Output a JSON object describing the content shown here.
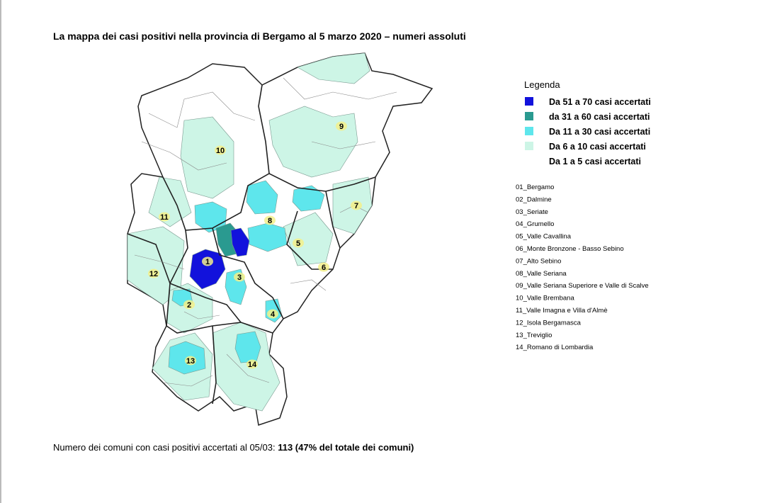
{
  "title": "La mappa dei casi positivi nella provincia di Bergamo al 5 marzo 2020 – numeri assoluti",
  "legend": {
    "title": "Legenda",
    "items": [
      {
        "label": "Da 51 a 70 casi accertati",
        "color": "#1212dc"
      },
      {
        "label": "da 31 a 60 casi accertati",
        "color": "#2a9a90"
      },
      {
        "label": "Da 11 a 30 casi accertati",
        "color": "#5ee6ec"
      },
      {
        "label": "Da 6 a 10 casi accertati",
        "color": "#cdf5e6"
      },
      {
        "label": "Da 1 a 5 casi accertati",
        "color": "#ffffff"
      }
    ]
  },
  "map_labels": [
    "1",
    "2",
    "3",
    "4",
    "5",
    "6",
    "7",
    "8",
    "9",
    "10",
    "11",
    "12",
    "13",
    "14"
  ],
  "districts": [
    "01_Bergamo",
    "02_Dalmine",
    "03_Seriate",
    "04_Grumello",
    "05_Valle Cavallina",
    "06_Monte Bronzone - Basso Sebino",
    "07_Alto Sebino",
    "08_Valle Seriana",
    "09_Valle Seriana Superiore e Valle di Scalve",
    "10_Valle Brembana",
    "11_Valle Imagna e Villa d'Almè",
    "12_Isola Bergamasca",
    "13_Treviglio",
    "14_Romano di Lombardia"
  ],
  "footer": {
    "text": "Numero dei comuni con casi positivi accertati al 05/03:",
    "highlight": "113 (47% del totale dei comuni)"
  }
}
